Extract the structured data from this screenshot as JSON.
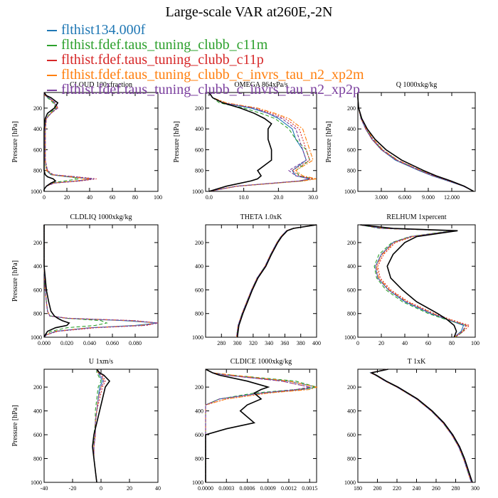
{
  "title": "Large-scale VAR at260E,-2N",
  "series": [
    {
      "name": "flthist134.000f",
      "color": "#1f77b4",
      "dash": "none"
    },
    {
      "name": "flthist.fdef.taus_tuning_clubb_c11m",
      "color": "#2ca02c",
      "dash": "5,3"
    },
    {
      "name": "flthist.fdef.taus_tuning_clubb_c11p",
      "color": "#d62728",
      "dash": "2,2"
    },
    {
      "name": "flthist.fdef.taus_tuning_clubb_c_invrs_tau_n2_xp2m",
      "color": "#ff7f0e",
      "dash": "6,2,2,2"
    },
    {
      "name": "flthist.fdef.taus_tuning_clubb_c_invrs_tau_n2_xp2p",
      "color": "#7b3f9e",
      "dash": "4,2"
    }
  ],
  "reference_color": "#000000",
  "chart_data": [
    {
      "type": "line",
      "title": "CLOUD 100xfraction",
      "ylabel": "Pressure [hPa]",
      "xlim": [
        0,
        100
      ],
      "xticks": [
        "0",
        "20",
        "40",
        "60",
        "80",
        "100"
      ],
      "xtickvals": [
        0,
        20,
        40,
        60,
        80,
        100
      ],
      "ylim": [
        1000,
        50
      ],
      "yticks": [
        200,
        400,
        600,
        800,
        1000
      ],
      "p": [
        50,
        80,
        100,
        150,
        200,
        250,
        300,
        400,
        500,
        600,
        700,
        800,
        840,
        860,
        880,
        900,
        920,
        950,
        980,
        1000
      ],
      "series_values": [
        [
          0,
          1,
          4,
          9,
          11,
          6,
          2,
          1,
          1,
          1,
          1,
          2,
          6,
          20,
          42,
          28,
          8,
          2,
          0,
          0
        ],
        [
          0,
          1,
          3,
          8,
          10,
          5,
          2,
          1,
          1,
          1,
          1,
          2,
          7,
          24,
          30,
          18,
          6,
          2,
          0,
          0
        ],
        [
          0,
          1,
          4,
          10,
          12,
          6,
          2,
          1,
          1,
          1,
          1,
          3,
          8,
          28,
          46,
          32,
          9,
          2,
          0,
          0
        ],
        [
          0,
          1,
          4,
          9,
          11,
          6,
          2,
          1,
          1,
          1,
          1,
          2,
          7,
          22,
          40,
          27,
          8,
          2,
          0,
          0
        ],
        [
          0,
          1,
          4,
          10,
          12,
          6,
          2,
          1,
          1,
          1,
          1,
          3,
          8,
          27,
          44,
          30,
          9,
          2,
          0,
          0
        ]
      ],
      "reference": [
        0,
        2,
        6,
        12,
        9,
        3,
        1,
        0,
        0,
        0,
        0,
        0,
        1,
        3,
        8,
        10,
        6,
        2,
        0,
        0
      ]
    },
    {
      "type": "line",
      "title": "OMEGA 864xPa/s",
      "ylabel": "Pressure [hPa]",
      "xlim": [
        -1,
        31
      ],
      "xticks": [
        "0.0",
        "10.0",
        "20.0",
        "30.0"
      ],
      "xtickvals": [
        0,
        10,
        20,
        30
      ],
      "ylim": [
        1000,
        50
      ],
      "yticks": [
        200,
        400,
        600,
        800,
        1000
      ],
      "p": [
        50,
        100,
        150,
        200,
        250,
        300,
        350,
        400,
        500,
        600,
        700,
        800,
        850,
        880,
        900,
        950,
        1000
      ],
      "series_values": [
        [
          0,
          1,
          4,
          12,
          17,
          20,
          22,
          24,
          25,
          27,
          28,
          24,
          25,
          29,
          26,
          8,
          0
        ],
        [
          0,
          1,
          3,
          10,
          15,
          19,
          21,
          23,
          25,
          28,
          29,
          25,
          26,
          30,
          27,
          8,
          0
        ],
        [
          0,
          1,
          5,
          13,
          18,
          22,
          24,
          26,
          27,
          28,
          29,
          24,
          26,
          30,
          26,
          8,
          0
        ],
        [
          0,
          1,
          5,
          14,
          19,
          23,
          25,
          27,
          28,
          29,
          30,
          25,
          27,
          31,
          27,
          8,
          0
        ],
        [
          0,
          1,
          4,
          13,
          17,
          21,
          23,
          25,
          26,
          27,
          28,
          23,
          25,
          29,
          26,
          8,
          0
        ]
      ],
      "reference": [
        0,
        1,
        4,
        9,
        13,
        16,
        18,
        17,
        17,
        18,
        18,
        14,
        15,
        14,
        12,
        5,
        0
      ]
    },
    {
      "type": "line",
      "title": "Q 1000xkg/kg",
      "ylabel": "Pressure [hPa]",
      "xlim": [
        0,
        15
      ],
      "xticks": [
        "3.000",
        "6.000",
        "9.000",
        "12.000"
      ],
      "xtickvals": [
        3,
        6,
        9,
        12
      ],
      "ylim": [
        1000,
        50
      ],
      "yticks": [
        200,
        400,
        600,
        800,
        1000
      ],
      "p": [
        50,
        100,
        200,
        300,
        400,
        500,
        600,
        700,
        800,
        850,
        900,
        950,
        1000
      ],
      "series_values": [
        [
          0,
          0,
          0.1,
          0.4,
          1.0,
          1.8,
          3.0,
          4.8,
          7.8,
          9.5,
          11.5,
          13.5,
          14.8
        ],
        [
          0,
          0,
          0.1,
          0.4,
          1.0,
          1.9,
          3.1,
          5.0,
          8.0,
          9.8,
          11.8,
          13.6,
          14.8
        ],
        [
          0,
          0,
          0.1,
          0.4,
          1.0,
          1.8,
          3.0,
          4.9,
          7.9,
          9.6,
          11.6,
          13.5,
          14.8
        ],
        [
          0,
          0,
          0.1,
          0.4,
          1.1,
          2.0,
          3.2,
          5.1,
          8.1,
          9.8,
          11.8,
          13.6,
          14.8
        ],
        [
          0,
          0,
          0.1,
          0.4,
          1.0,
          1.9,
          3.1,
          5.0,
          8.0,
          9.7,
          11.7,
          13.5,
          14.8
        ]
      ],
      "reference": [
        0,
        0,
        0.1,
        0.5,
        1.2,
        2.2,
        3.6,
        5.6,
        8.4,
        10.0,
        11.9,
        13.6,
        14.8
      ]
    },
    {
      "type": "line",
      "title": "CLDLIQ 1000xkg/kg",
      "ylabel": "Pressure [hPa]",
      "xlim": [
        0,
        0.1
      ],
      "xticks": [
        "0.000",
        "0.020",
        "0.040",
        "0.060",
        "0.080"
      ],
      "xtickvals": [
        0,
        0.02,
        0.04,
        0.06,
        0.08
      ],
      "ylim": [
        1000,
        50
      ],
      "yticks": [
        200,
        400,
        600,
        800,
        1000
      ],
      "p": [
        50,
        400,
        600,
        700,
        780,
        820,
        840,
        860,
        880,
        900,
        920,
        950,
        980,
        1000
      ],
      "series_values": [
        [
          0,
          0,
          0.001,
          0.002,
          0.003,
          0.005,
          0.02,
          0.07,
          0.1,
          0.08,
          0.04,
          0.01,
          0.002,
          0
        ],
        [
          0,
          0,
          0.001,
          0.002,
          0.003,
          0.005,
          0.02,
          0.05,
          0.055,
          0.045,
          0.02,
          0.006,
          0.001,
          0
        ],
        [
          0,
          0,
          0.001,
          0.002,
          0.003,
          0.005,
          0.022,
          0.08,
          0.1,
          0.09,
          0.045,
          0.012,
          0.002,
          0
        ],
        [
          0,
          0,
          0.001,
          0.002,
          0.003,
          0.005,
          0.02,
          0.075,
          0.1,
          0.085,
          0.04,
          0.01,
          0.002,
          0
        ],
        [
          0,
          0,
          0.001,
          0.002,
          0.003,
          0.005,
          0.021,
          0.078,
          0.1,
          0.088,
          0.042,
          0.011,
          0.002,
          0
        ]
      ],
      "reference": [
        0,
        0,
        0.002,
        0.004,
        0.006,
        0.009,
        0.012,
        0.016,
        0.022,
        0.02,
        0.01,
        0.003,
        0.001,
        0
      ]
    },
    {
      "type": "line",
      "title": "THETA 1.0xK",
      "ylabel": "",
      "xlim": [
        260,
        400
      ],
      "xticks": [
        "280",
        "300",
        "320",
        "340",
        "360",
        "380",
        "400"
      ],
      "xtickvals": [
        280,
        300,
        320,
        340,
        360,
        380,
        400
      ],
      "ylim": [
        1000,
        50
      ],
      "yticks": [
        200,
        400,
        600,
        800,
        1000
      ],
      "p": [
        50,
        80,
        100,
        150,
        200,
        300,
        400,
        500,
        600,
        700,
        800,
        900,
        1000
      ],
      "series_values": [
        [
          400,
          370,
          362,
          355,
          350,
          342,
          335,
          325,
          318,
          312,
          306,
          301,
          299
        ],
        [
          400,
          370,
          362,
          355,
          350,
          342,
          335,
          325,
          318,
          312,
          306,
          301,
          299
        ],
        [
          400,
          370,
          362,
          355,
          350,
          342,
          335,
          325,
          318,
          312,
          306,
          301,
          299
        ],
        [
          400,
          370,
          362,
          355,
          350,
          342,
          335,
          325,
          318,
          312,
          306,
          301,
          299
        ],
        [
          400,
          370,
          362,
          355,
          350,
          342,
          335,
          325,
          318,
          312,
          306,
          301,
          299
        ]
      ],
      "reference": [
        400,
        371,
        363,
        356,
        351,
        343,
        336,
        326,
        319,
        313,
        307,
        302,
        300
      ]
    },
    {
      "type": "line",
      "title": "RELHUM 1xpercent",
      "ylabel": "",
      "xlim": [
        0,
        100
      ],
      "xticks": [
        "0",
        "20",
        "40",
        "60",
        "80",
        "100"
      ],
      "xtickvals": [
        0,
        20,
        40,
        60,
        80,
        100
      ],
      "ylim": [
        1000,
        50
      ],
      "yticks": [
        200,
        400,
        600,
        800,
        1000
      ],
      "p": [
        50,
        80,
        100,
        150,
        200,
        300,
        400,
        500,
        600,
        700,
        800,
        850,
        900,
        950,
        1000
      ],
      "series_values": [
        [
          2,
          20,
          82,
          45,
          30,
          20,
          15,
          17,
          26,
          40,
          62,
          76,
          90,
          88,
          82
        ],
        [
          2,
          18,
          80,
          44,
          29,
          18,
          14,
          16,
          24,
          38,
          60,
          75,
          92,
          90,
          83
        ],
        [
          2,
          22,
          84,
          47,
          32,
          22,
          17,
          19,
          28,
          43,
          65,
          79,
          95,
          90,
          83
        ],
        [
          2,
          21,
          83,
          46,
          31,
          21,
          16,
          18,
          27,
          42,
          64,
          78,
          93,
          89,
          82
        ],
        [
          2,
          20,
          82,
          45,
          30,
          20,
          15,
          17,
          26,
          41,
          63,
          77,
          92,
          89,
          82
        ]
      ],
      "reference": [
        2,
        30,
        85,
        50,
        40,
        30,
        25,
        28,
        38,
        50,
        68,
        76,
        82,
        84,
        82
      ]
    },
    {
      "type": "line",
      "title": "U 1xm/s",
      "ylabel": "Pressure [hPa]",
      "xlim": [
        -40,
        40
      ],
      "xticks": [
        "-40",
        "-20",
        "0",
        "20",
        "40"
      ],
      "xtickvals": [
        -40,
        -20,
        0,
        20,
        40
      ],
      "ylim": [
        1000,
        50
      ],
      "yticks": [
        200,
        400,
        600,
        800,
        1000
      ],
      "p": [
        50,
        80,
        100,
        150,
        200,
        300,
        400,
        500,
        600,
        700,
        800,
        900,
        1000
      ],
      "series_values": [
        [
          -3,
          -2,
          -1,
          1,
          -1,
          -2,
          -3,
          -4,
          -4,
          -5,
          -5,
          -4,
          -3
        ],
        [
          -3,
          -3,
          -2,
          0,
          -2,
          -3,
          -4,
          -4,
          -5,
          -5,
          -5,
          -4,
          -3
        ],
        [
          -3,
          -1,
          1,
          3,
          1,
          -1,
          -3,
          -4,
          -4,
          -5,
          -5,
          -4,
          -3
        ],
        [
          -3,
          -2,
          0,
          2,
          0,
          -2,
          -3,
          -4,
          -4,
          -5,
          -5,
          -4,
          -3
        ],
        [
          -3,
          -2,
          0,
          2,
          0,
          -2,
          -3,
          -4,
          -4,
          -5,
          -5,
          -4,
          -3
        ]
      ],
      "reference": [
        -3,
        -1,
        2,
        6,
        3,
        1,
        -1,
        -3,
        -5,
        -6,
        -5,
        -4,
        -3
      ]
    },
    {
      "type": "line",
      "title": "CLDICE 1000xkg/kg",
      "ylabel": "",
      "xlim": [
        0,
        0.0016
      ],
      "xticks": [
        "0.0000",
        "0.0003",
        "0.0006",
        "0.0009",
        "0.0012",
        "0.0015"
      ],
      "xtickvals": [
        0,
        0.0003,
        0.0006,
        0.0009,
        0.0012,
        0.0015
      ],
      "ylim": [
        1000,
        50
      ],
      "yticks": [
        200,
        400,
        600,
        800,
        1000
      ],
      "p": [
        50,
        80,
        100,
        150,
        200,
        220,
        250,
        300,
        350,
        400,
        500,
        550,
        600,
        700,
        1000
      ],
      "series_values": [
        [
          0,
          0.0001,
          0.0003,
          0.0012,
          0.0016,
          0.0014,
          0.0008,
          0.0002,
          0,
          0,
          0,
          0,
          0,
          0,
          0
        ],
        [
          0,
          0.0001,
          0.0004,
          0.0013,
          0.0016,
          0.0013,
          0.0007,
          0.0002,
          0,
          0,
          0,
          0,
          0,
          0,
          0
        ],
        [
          0,
          0.0001,
          0.0003,
          0.0011,
          0.0015,
          0.0014,
          0.0009,
          0.0003,
          0,
          0,
          0,
          0,
          0,
          0,
          0
        ],
        [
          0,
          0.0001,
          0.0004,
          0.0012,
          0.0016,
          0.0015,
          0.0009,
          0.0003,
          0,
          0,
          0,
          0,
          0,
          0,
          0
        ],
        [
          0,
          0.0001,
          0.0003,
          0.0011,
          0.0015,
          0.0013,
          0.0008,
          0.0002,
          0,
          0,
          0,
          0,
          0,
          0,
          0
        ]
      ],
      "reference": [
        0,
        0.0001,
        0.0002,
        0.0006,
        0.0009,
        0.0008,
        0.0007,
        0.0008,
        0.0006,
        0.0005,
        0.0007,
        0.0003,
        0,
        0,
        0
      ]
    },
    {
      "type": "line",
      "title": "T 1xK",
      "ylabel": "",
      "xlim": [
        180,
        300
      ],
      "xticks": [
        "180",
        "200",
        "220",
        "240",
        "260",
        "280",
        "300"
      ],
      "xtickvals": [
        180,
        200,
        220,
        240,
        260,
        280,
        300
      ],
      "ylim": [
        1000,
        50
      ],
      "yticks": [
        200,
        400,
        600,
        800,
        1000
      ],
      "p": [
        50,
        80,
        100,
        150,
        200,
        300,
        400,
        500,
        600,
        700,
        800,
        900,
        1000
      ],
      "series_values": [
        [
          210,
          193,
          198,
          208,
          220,
          240,
          255,
          267,
          276,
          283,
          288,
          292,
          296
        ],
        [
          210,
          193,
          198,
          208,
          220,
          240,
          255,
          267,
          276,
          283,
          288,
          292,
          296
        ],
        [
          210,
          193,
          198,
          208,
          220,
          240,
          255,
          267,
          276,
          283,
          288,
          292,
          296
        ],
        [
          210,
          193,
          198,
          208,
          220,
          240,
          255,
          267,
          276,
          283,
          288,
          292,
          296
        ],
        [
          210,
          193,
          198,
          208,
          220,
          240,
          255,
          267,
          276,
          283,
          288,
          292,
          296
        ]
      ],
      "reference": [
        211,
        194,
        199,
        209,
        221,
        241,
        256,
        268,
        277,
        284,
        289,
        293,
        297
      ]
    }
  ]
}
